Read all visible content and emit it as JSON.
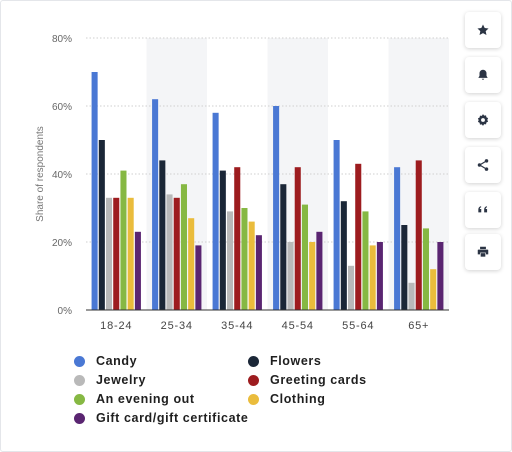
{
  "chart_data": {
    "type": "bar",
    "ylabel": "Share of respondents",
    "xlabel": "",
    "ylim": [
      0,
      80
    ],
    "yticks": [
      "0%",
      "20%",
      "40%",
      "60%",
      "80%"
    ],
    "grid": true,
    "legend_position": "bottom",
    "categories": [
      "18-24",
      "25-34",
      "35-44",
      "45-54",
      "55-64",
      "65+"
    ],
    "series": [
      {
        "name": "Candy",
        "color": "#4a78d4",
        "values": [
          70,
          62,
          58,
          60,
          50,
          42
        ]
      },
      {
        "name": "Flowers",
        "color": "#1b2737",
        "values": [
          50,
          44,
          41,
          37,
          32,
          25
        ]
      },
      {
        "name": "Jewelry",
        "color": "#b9b9b9",
        "values": [
          33,
          34,
          29,
          20,
          13,
          8
        ]
      },
      {
        "name": "Greeting cards",
        "color": "#9d1c1f",
        "values": [
          33,
          33,
          42,
          42,
          43,
          44
        ]
      },
      {
        "name": "An evening out",
        "color": "#86b843",
        "values": [
          41,
          37,
          30,
          31,
          29,
          24
        ]
      },
      {
        "name": "Clothing",
        "color": "#eabc3c",
        "values": [
          33,
          27,
          26,
          20,
          19,
          12
        ]
      },
      {
        "name": "Gift card/gift certificate",
        "color": "#5a2571",
        "values": [
          23,
          19,
          22,
          23,
          20,
          20
        ]
      }
    ]
  },
  "sidebar": {
    "buttons": [
      {
        "name": "favorite-button",
        "icon": "star-icon"
      },
      {
        "name": "notification-button",
        "icon": "bell-icon"
      },
      {
        "name": "settings-button",
        "icon": "gear-icon"
      },
      {
        "name": "share-button",
        "icon": "share-icon"
      },
      {
        "name": "citation-button",
        "icon": "quote-icon"
      },
      {
        "name": "print-button",
        "icon": "printer-icon"
      }
    ]
  },
  "colors": {
    "icon": "#2b3444",
    "grid": "#cfcfcf",
    "band": "#f4f5f7"
  }
}
